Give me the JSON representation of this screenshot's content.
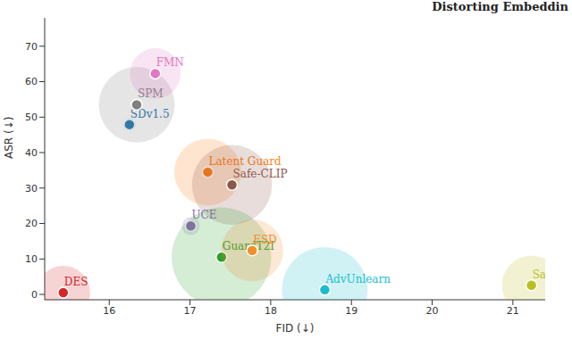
{
  "header": "Distorting Embeddin",
  "chart_data": {
    "type": "scatter",
    "x_label": "FID (↓)",
    "y_label": "ASR (↓)",
    "xlim": [
      15.2,
      21.4
    ],
    "xticks": [
      16,
      17,
      18,
      19,
      20,
      21
    ],
    "ylim": [
      -1.5,
      78
    ],
    "yticks": [
      0,
      10,
      20,
      30,
      40,
      50,
      60,
      70
    ],
    "grid": false,
    "marker": "circle",
    "series": [
      {
        "name": "DES",
        "color": "#d62728",
        "x": 15.43,
        "y": 0.5,
        "size": 9
      },
      {
        "name": "SDv1.5",
        "color": "#1f77b4",
        "x": 16.25,
        "y": 47.9,
        "size": 0.5
      },
      {
        "name": "SPM",
        "color": "#7f7f7f",
        "x": 16.34,
        "y": 53.5,
        "size": 18
      },
      {
        "name": "FMN",
        "color": "#e377c2",
        "x": 16.57,
        "y": 62.3,
        "size": 8
      },
      {
        "name": "Latent Guard",
        "color": "#ff7f0e",
        "x": 17.22,
        "y": 34.5,
        "size": 14
      },
      {
        "name": "Safe-CLIP",
        "color": "#8c564b",
        "x": 17.52,
        "y": 30.9,
        "size": 20
      },
      {
        "name": "UCE",
        "color": "#9467bd",
        "x": 17.01,
        "y": 19.3,
        "size": 1
      },
      {
        "name": "GuardT2I",
        "color": "#2ca02c",
        "x": 17.39,
        "y": 10.5,
        "size": 31
      },
      {
        "name": "ESD",
        "color": "#f28e2b",
        "x": 17.77,
        "y": 12.4,
        "size": 12
      },
      {
        "name": "AdvUnlearn",
        "color": "#17becf",
        "x": 18.67,
        "y": 1.3,
        "size": 23
      },
      {
        "name": "SalUn",
        "color": "#bcbd22",
        "x": 21.23,
        "y": 2.6,
        "size": 11
      }
    ]
  }
}
